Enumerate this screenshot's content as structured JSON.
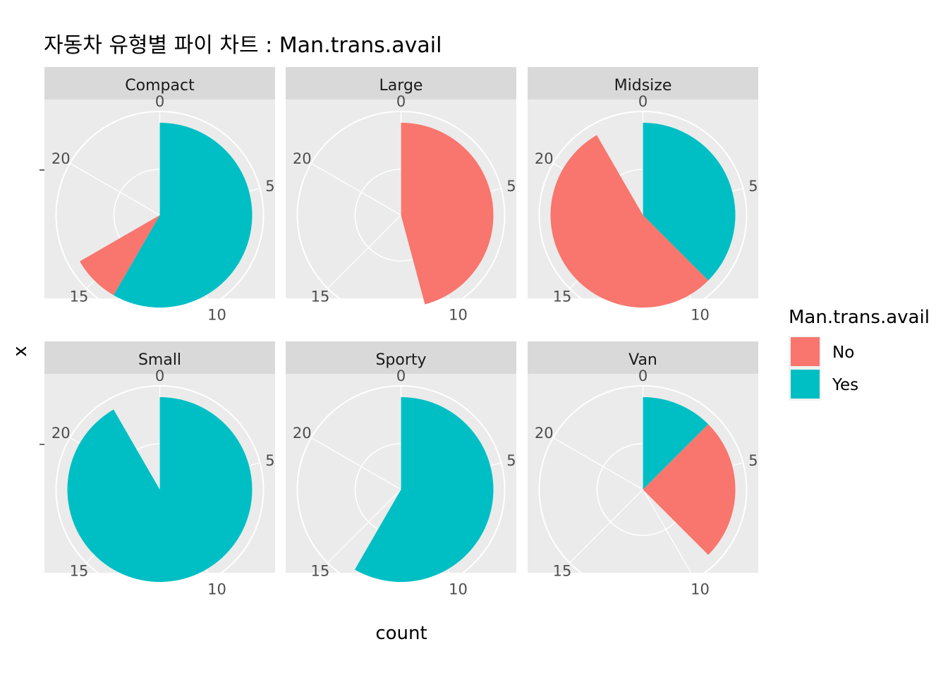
{
  "title": "자동차 유형별 파이 차트 : Man.trans.avail",
  "xlabel": "count",
  "ylabel": "x",
  "legend_title": "Man.trans.avail",
  "colors": {
    "No": "#F8766D",
    "Yes": "#00BFC4"
  },
  "theta_ticks": [
    "0",
    "5",
    "10",
    "15",
    "20"
  ],
  "chart_data": {
    "type": "pie",
    "facet_by": "Type",
    "legend": {
      "title": "Man.trans.avail",
      "position": "right",
      "entries": [
        "No",
        "Yes"
      ]
    },
    "theta_axis": {
      "label": "count",
      "range": [
        0,
        24
      ],
      "ticks": [
        0,
        5,
        10,
        15,
        20
      ]
    },
    "series_order": [
      "Yes",
      "No"
    ],
    "panels": [
      {
        "name": "Compact",
        "values": {
          "No": 2,
          "Yes": 14
        }
      },
      {
        "name": "Large",
        "values": {
          "No": 11,
          "Yes": 0
        }
      },
      {
        "name": "Midsize",
        "values": {
          "No": 13,
          "Yes": 9
        }
      },
      {
        "name": "Small",
        "values": {
          "No": 0,
          "Yes": 22
        }
      },
      {
        "name": "Sporty",
        "values": {
          "No": 0,
          "Yes": 14
        }
      },
      {
        "name": "Van",
        "values": {
          "No": 6,
          "Yes": 3
        }
      }
    ]
  }
}
